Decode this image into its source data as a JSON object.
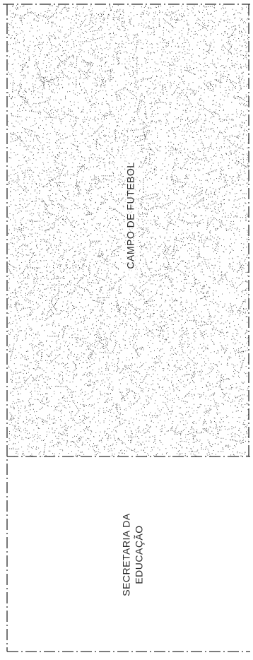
{
  "plan": {
    "areas": [
      {
        "id": "campo",
        "label": "CAMPO  DE  FUTEBOL",
        "fill": "stipple"
      },
      {
        "id": "secretaria",
        "label_lines": [
          "SECRETARIA  DA",
          "EDUCAÇÃO"
        ],
        "fill": "none"
      }
    ],
    "colors": {
      "line": "#2e2e2e",
      "stipple": "#3a3a3a",
      "background": "#ffffff"
    }
  }
}
